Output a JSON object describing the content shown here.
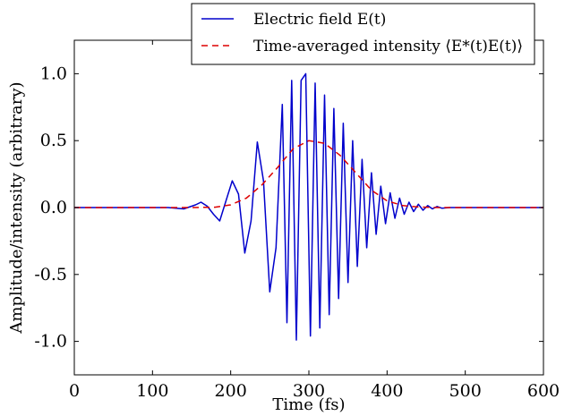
{
  "chart_data": {
    "type": "line",
    "xlabel": "Time (fs)",
    "ylabel": "Amplitude/intensity (arbitrary)",
    "xlim": [
      0,
      600
    ],
    "ylim": [
      -1.25,
      1.25
    ],
    "x_ticks": [
      "0",
      "100",
      "200",
      "300",
      "400",
      "500",
      "600"
    ],
    "y_ticks": [
      "1.0",
      "0.5",
      "0.0",
      "-0.5",
      "-1.0"
    ],
    "y_tick_values": [
      1.0,
      0.5,
      0.0,
      -0.5,
      -1.0
    ],
    "x_tick_values": [
      0,
      100,
      200,
      300,
      400,
      500,
      600
    ],
    "grid": false,
    "legend_position": "top-right",
    "series": [
      {
        "name": "Electric field E(t)",
        "color": "#0000cc",
        "style": "solid",
        "x": [
          0,
          120,
          140,
          155,
          162,
          170,
          178,
          186,
          194,
          202,
          210,
          218,
          226,
          234,
          242,
          250,
          258,
          266,
          272,
          278,
          284,
          290,
          296,
          302,
          308,
          314,
          320,
          326,
          332,
          338,
          344,
          350,
          356,
          362,
          368,
          374,
          380,
          386,
          392,
          398,
          404,
          410,
          416,
          422,
          428,
          434,
          440,
          446,
          452,
          458,
          464,
          470,
          480,
          600
        ],
        "y": [
          0.0,
          0.0,
          -0.01,
          0.02,
          0.04,
          0.01,
          -0.05,
          -0.1,
          0.05,
          0.2,
          0.1,
          -0.34,
          -0.1,
          0.49,
          0.2,
          -0.63,
          -0.3,
          0.77,
          -0.86,
          0.95,
          -0.99,
          0.95,
          1.0,
          -0.96,
          0.93,
          -0.9,
          0.84,
          -0.8,
          0.74,
          -0.68,
          0.63,
          -0.56,
          0.5,
          -0.44,
          0.36,
          -0.3,
          0.26,
          -0.2,
          0.16,
          -0.12,
          0.11,
          -0.08,
          0.07,
          -0.05,
          0.04,
          -0.03,
          0.025,
          -0.02,
          0.015,
          -0.01,
          0.008,
          -0.005,
          0.0,
          0.0
        ]
      },
      {
        "name": "Time-averaged intensity ⟨E*(t)E(t)⟩",
        "color": "#dd0000",
        "style": "dashed",
        "x": [
          0,
          150,
          180,
          200,
          220,
          240,
          260,
          280,
          300,
          320,
          340,
          360,
          380,
          400,
          420,
          440,
          460,
          480,
          600
        ],
        "y": [
          0.0,
          0.0,
          0.003,
          0.02,
          0.07,
          0.17,
          0.3,
          0.44,
          0.5,
          0.48,
          0.39,
          0.26,
          0.13,
          0.05,
          0.015,
          0.004,
          0.001,
          0.0,
          0.0
        ]
      }
    ]
  }
}
